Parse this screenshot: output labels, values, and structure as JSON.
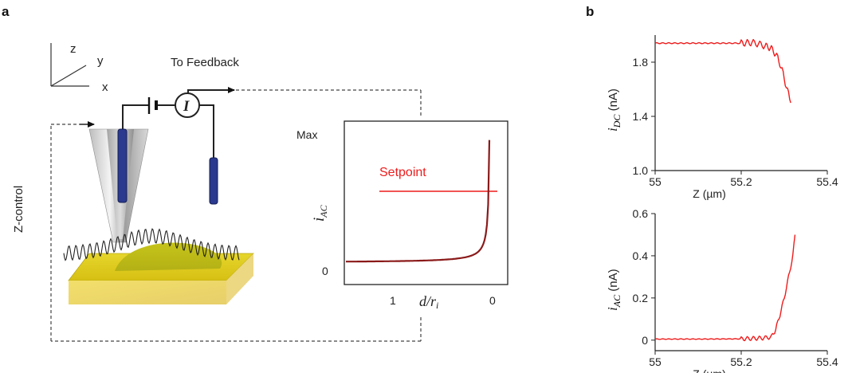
{
  "panel_a": {
    "letter": "a",
    "axes": {
      "z": "z",
      "y": "y",
      "x": "x"
    },
    "to_feedback": "To Feedback",
    "z_control": "Z-control",
    "current_symbol": "I",
    "inset": {
      "ymax_label": "Max",
      "y0_label": "0",
      "ylabel_main": "i",
      "ylabel_sub": "AC",
      "xtick_1": "1",
      "xtick_0": "0",
      "xlabel": "d/r",
      "xlabel_sub": "i",
      "setpoint_label": "Setpoint"
    }
  },
  "panel_b": {
    "letter": "b"
  },
  "colors": {
    "trace_red": "#ee1c1c",
    "approach_curve": "#8b1a1a",
    "electrode_blue": "#2b3a8f",
    "gold": "#e3d02a"
  },
  "chart_data": [
    {
      "type": "line",
      "title": "",
      "xlabel": "Z (µm)",
      "ylabel_main": "i",
      "ylabel_sub": "DC",
      "ylabel_unit": " (nA)",
      "xlim": [
        55,
        55.4
      ],
      "ylim": [
        1.0,
        2.0
      ],
      "xticks": [
        "55",
        "55.2",
        "55.4"
      ],
      "yticks": [
        "1.0",
        "1.4",
        "1.8"
      ],
      "series": [
        {
          "x": [
            55.0,
            55.1,
            55.2,
            55.225,
            55.24,
            55.255,
            55.265,
            55.27,
            55.275,
            55.28,
            55.285,
            55.29,
            55.295,
            55.3,
            55.305,
            55.31,
            55.315
          ],
          "y": [
            1.94,
            1.94,
            1.94,
            1.945,
            1.935,
            1.92,
            1.91,
            1.9,
            1.88,
            1.86,
            1.83,
            1.79,
            1.74,
            1.68,
            1.62,
            1.56,
            1.5
          ],
          "noise": 0.025
        }
      ]
    },
    {
      "type": "line",
      "title": "",
      "xlabel": "Z (µm)",
      "ylabel_main": "i",
      "ylabel_sub": "AC",
      "ylabel_unit": " (nA)",
      "xlim": [
        55,
        55.4
      ],
      "ylim": [
        -0.05,
        0.6
      ],
      "xticks": [
        "55",
        "55.2",
        "55.4"
      ],
      "yticks": [
        "0",
        "0.2",
        "0.4",
        "0.6"
      ],
      "series": [
        {
          "x": [
            55.0,
            55.1,
            55.2,
            55.25,
            55.27,
            55.28,
            55.29,
            55.3,
            55.31,
            55.32,
            55.325
          ],
          "y": [
            0.005,
            0.005,
            0.006,
            0.01,
            0.015,
            0.05,
            0.12,
            0.2,
            0.3,
            0.4,
            0.5
          ],
          "noise": 0.01
        }
      ]
    }
  ]
}
